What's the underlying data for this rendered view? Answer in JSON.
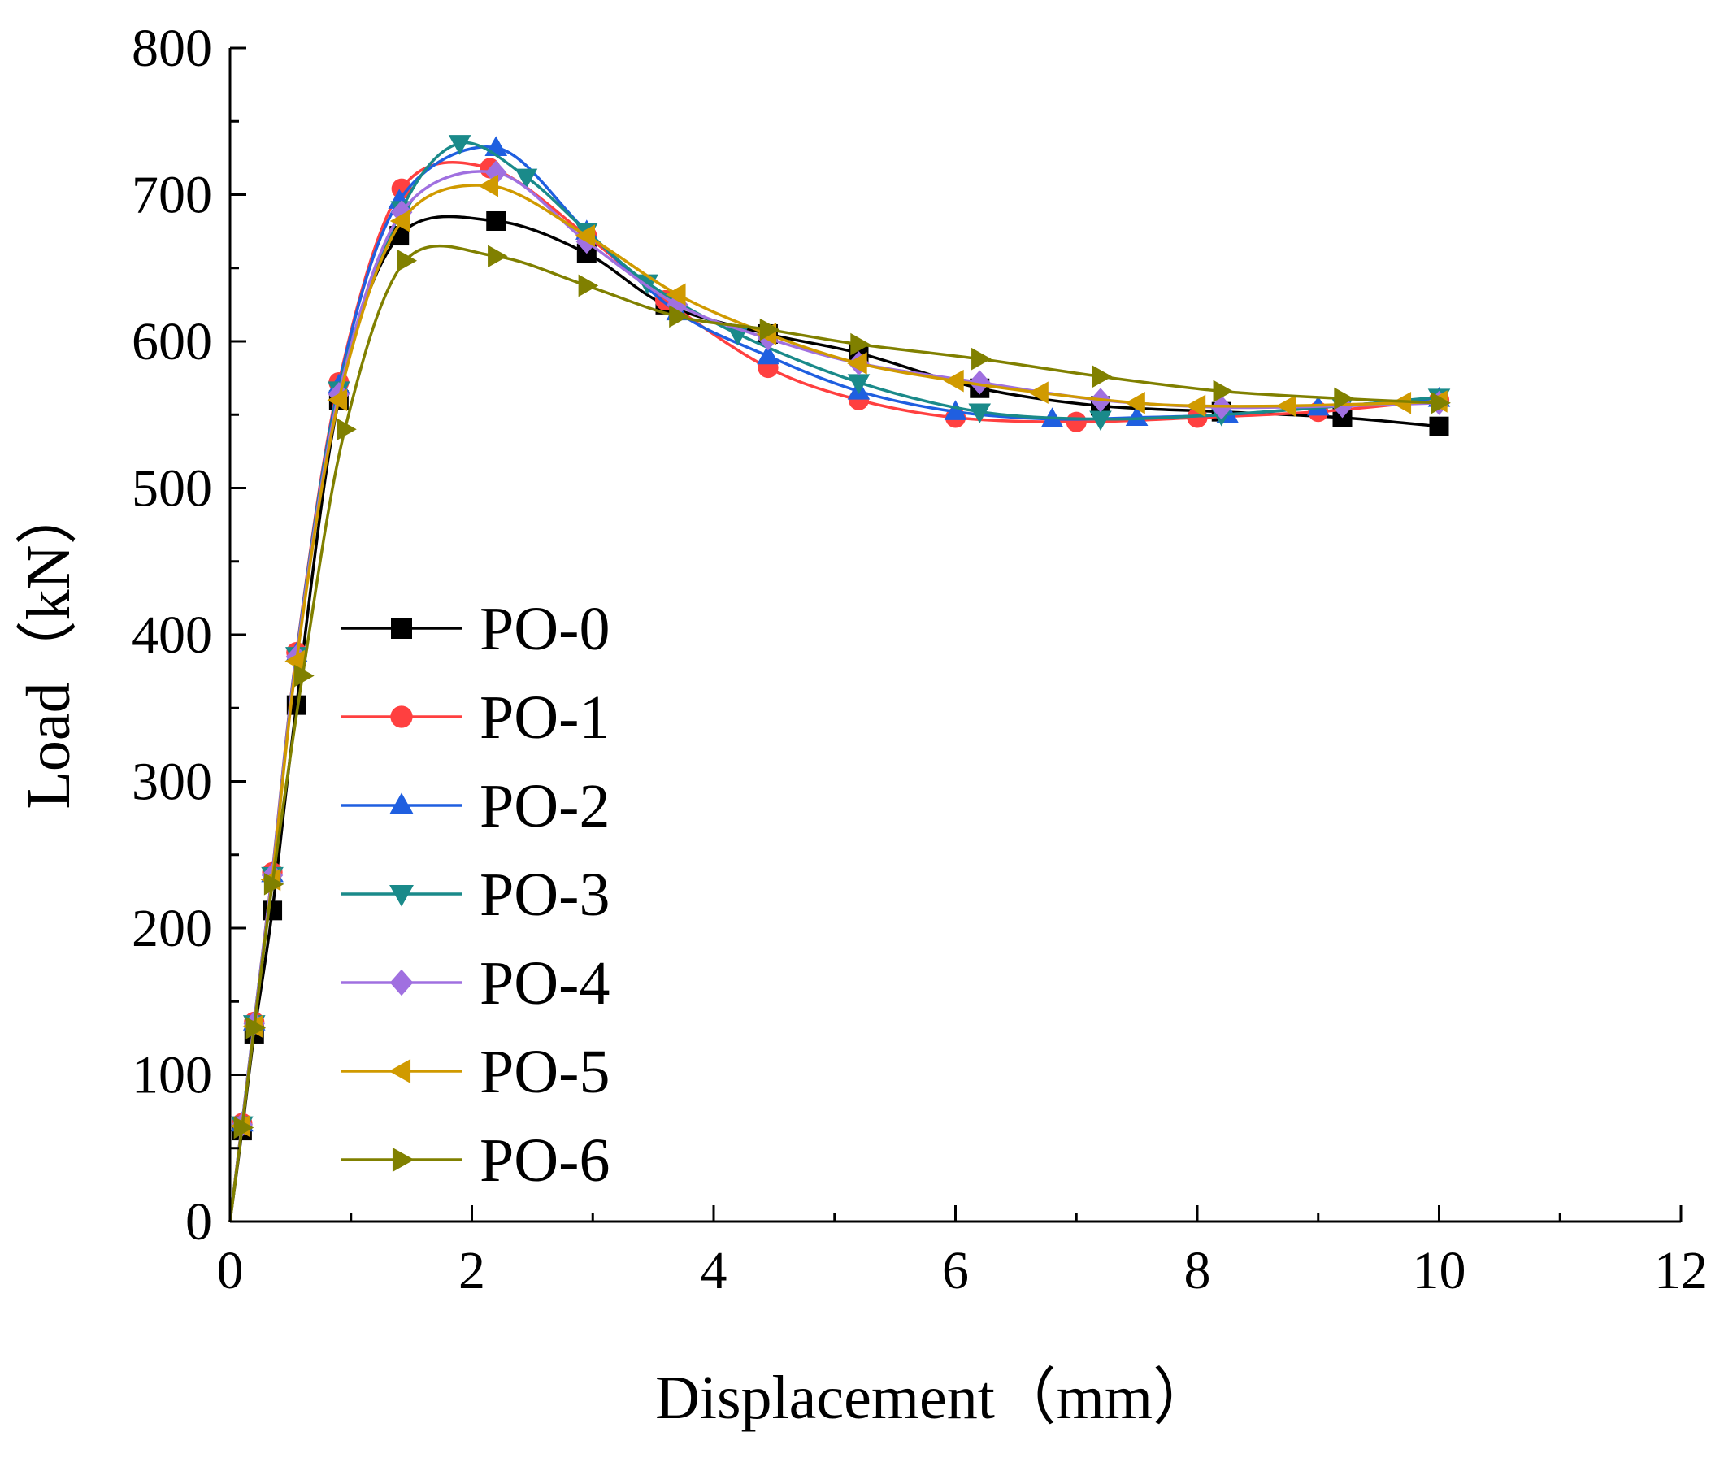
{
  "chart_data": {
    "type": "line",
    "title": "",
    "xlabel": "Displacement（mm）",
    "ylabel": "Load（kN）",
    "xlim": [
      0,
      12
    ],
    "ylim": [
      0,
      800
    ],
    "xticks": [
      "0",
      "2",
      "4",
      "6",
      "8",
      "10",
      "12"
    ],
    "yticks": [
      "0",
      "100",
      "200",
      "300",
      "400",
      "500",
      "600",
      "700",
      "800"
    ],
    "grid": false,
    "legend_position": "left",
    "series": [
      {
        "name": "PO-0",
        "color": "#000000",
        "marker": "square",
        "points": [
          [
            0,
            0
          ],
          [
            0.1,
            62
          ],
          [
            0.2,
            128
          ],
          [
            0.35,
            212
          ],
          [
            0.55,
            352
          ],
          [
            0.9,
            560
          ],
          [
            1.4,
            672
          ],
          [
            2.2,
            682
          ],
          [
            2.95,
            660
          ],
          [
            3.6,
            625
          ],
          [
            4.45,
            605
          ],
          [
            5.2,
            592
          ],
          [
            6.2,
            568
          ],
          [
            7.2,
            556
          ],
          [
            8.2,
            552
          ],
          [
            9.2,
            548
          ],
          [
            10,
            542
          ]
        ]
      },
      {
        "name": "PO-1",
        "color": "#ff4040",
        "marker": "circle",
        "points": [
          [
            0,
            0
          ],
          [
            0.1,
            67
          ],
          [
            0.2,
            136
          ],
          [
            0.35,
            238
          ],
          [
            0.55,
            388
          ],
          [
            0.9,
            572
          ],
          [
            1.42,
            704
          ],
          [
            2.15,
            718
          ],
          [
            2.95,
            672
          ],
          [
            3.6,
            628
          ],
          [
            4.45,
            582
          ],
          [
            5.2,
            560
          ],
          [
            6.0,
            548
          ],
          [
            7.0,
            545
          ],
          [
            8.0,
            548
          ],
          [
            9.0,
            552
          ],
          [
            10,
            560
          ]
        ]
      },
      {
        "name": "PO-2",
        "color": "#1f5fe0",
        "marker": "triangle-up",
        "points": [
          [
            0,
            0
          ],
          [
            0.1,
            67
          ],
          [
            0.2,
            136
          ],
          [
            0.35,
            237
          ],
          [
            0.55,
            387
          ],
          [
            0.9,
            570
          ],
          [
            1.4,
            696
          ],
          [
            2.2,
            732
          ],
          [
            2.95,
            675
          ],
          [
            3.7,
            620
          ],
          [
            4.45,
            590
          ],
          [
            5.2,
            566
          ],
          [
            6.0,
            552
          ],
          [
            6.8,
            547
          ],
          [
            7.5,
            548
          ],
          [
            8.25,
            550
          ],
          [
            9.0,
            555
          ],
          [
            10,
            561
          ]
        ]
      },
      {
        "name": "PO-3",
        "color": "#1a8a8a",
        "marker": "triangle-down",
        "points": [
          [
            0,
            0
          ],
          [
            0.1,
            66
          ],
          [
            0.2,
            135
          ],
          [
            0.35,
            236
          ],
          [
            0.55,
            386
          ],
          [
            0.9,
            567
          ],
          [
            1.42,
            690
          ],
          [
            1.9,
            735
          ],
          [
            2.45,
            712
          ],
          [
            2.95,
            675
          ],
          [
            3.45,
            640
          ],
          [
            4.2,
            605
          ],
          [
            5.2,
            572
          ],
          [
            6.2,
            552
          ],
          [
            7.2,
            547
          ],
          [
            8.2,
            550
          ],
          [
            9.2,
            556
          ],
          [
            10,
            562
          ]
        ]
      },
      {
        "name": "PO-4",
        "color": "#a070e0",
        "marker": "diamond",
        "points": [
          [
            0,
            0
          ],
          [
            0.1,
            66
          ],
          [
            0.2,
            135
          ],
          [
            0.35,
            236
          ],
          [
            0.55,
            385
          ],
          [
            0.9,
            564
          ],
          [
            1.42,
            688
          ],
          [
            2.2,
            715
          ],
          [
            2.95,
            668
          ],
          [
            3.7,
            625
          ],
          [
            4.45,
            602
          ],
          [
            5.2,
            585
          ],
          [
            6.2,
            572
          ],
          [
            7.2,
            560
          ],
          [
            8.2,
            555
          ],
          [
            9.2,
            556
          ],
          [
            10,
            558
          ]
        ]
      },
      {
        "name": "PO-5",
        "color": "#d09a00",
        "marker": "triangle-left",
        "points": [
          [
            0,
            0
          ],
          [
            0.1,
            65
          ],
          [
            0.2,
            133
          ],
          [
            0.35,
            233
          ],
          [
            0.55,
            382
          ],
          [
            0.9,
            560
          ],
          [
            1.42,
            682
          ],
          [
            2.15,
            706
          ],
          [
            2.95,
            672
          ],
          [
            3.7,
            632
          ],
          [
            4.45,
            605
          ],
          [
            5.2,
            585
          ],
          [
            6.0,
            573
          ],
          [
            6.7,
            565
          ],
          [
            7.5,
            558
          ],
          [
            8.0,
            556
          ],
          [
            8.75,
            556
          ],
          [
            9.7,
            558
          ],
          [
            10,
            559
          ]
        ]
      },
      {
        "name": "PO-6",
        "color": "#808000",
        "marker": "triangle-right",
        "points": [
          [
            0,
            0
          ],
          [
            0.1,
            64
          ],
          [
            0.2,
            132
          ],
          [
            0.35,
            230
          ],
          [
            0.6,
            372
          ],
          [
            0.95,
            540
          ],
          [
            1.45,
            655
          ],
          [
            2.2,
            658
          ],
          [
            2.95,
            638
          ],
          [
            3.7,
            617
          ],
          [
            4.45,
            608
          ],
          [
            5.2,
            598
          ],
          [
            6.2,
            588
          ],
          [
            7.2,
            576
          ],
          [
            8.2,
            566
          ],
          [
            9.2,
            561
          ],
          [
            10,
            558
          ]
        ]
      }
    ]
  }
}
